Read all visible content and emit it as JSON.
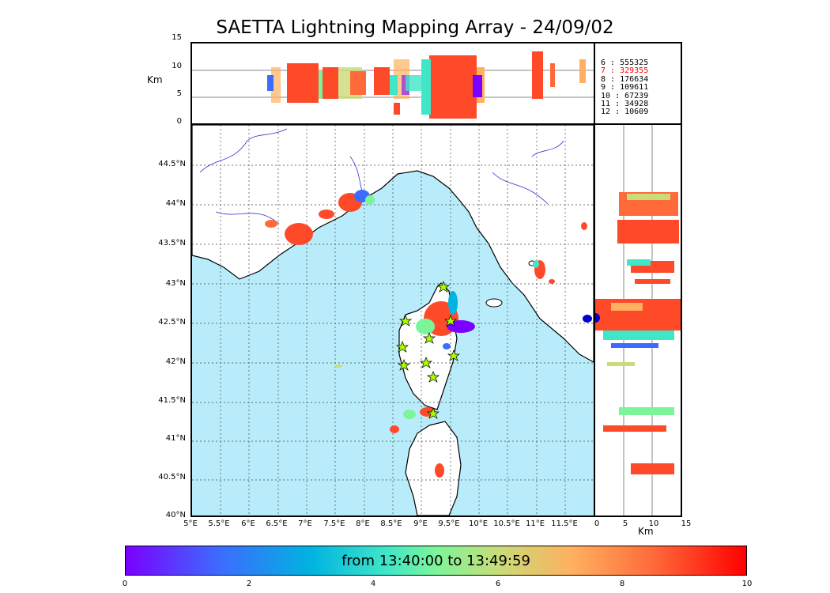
{
  "title": "SAETTA Lightning Mapping Array - 24/09/02",
  "altitude_panel": {
    "unit_label": "Km",
    "y_ticks": [
      "15",
      "10",
      "5",
      "0"
    ]
  },
  "stats": [
    {
      "label": "6",
      "value": "555325",
      "highlight": false
    },
    {
      "label": "7",
      "value": "329355",
      "highlight": true
    },
    {
      "label": "8",
      "value": "176634",
      "highlight": false
    },
    {
      "label": "9",
      "value": "109611",
      "highlight": false
    },
    {
      "label": "10",
      "value": "67239",
      "highlight": false
    },
    {
      "label": "11",
      "value": "34928",
      "highlight": false
    },
    {
      "label": "12",
      "value": "10609",
      "highlight": false
    }
  ],
  "map": {
    "lat_ticks": [
      "44.5°N",
      "44°N",
      "43.5°N",
      "43°N",
      "42.5°N",
      "42°N",
      "41.5°N",
      "41°N",
      "40.5°N",
      "40°N"
    ],
    "lon_ticks": [
      "5°E",
      "5.5°E",
      "6°E",
      "6.5°E",
      "7°E",
      "7.5°E",
      "8°E",
      "8.5°E",
      "9°E",
      "9.5°E",
      "10°E",
      "10.5°E",
      "11°E",
      "11.5°E"
    ],
    "sea_color": "#b8ecfa",
    "land_color": "#ffffff"
  },
  "side_panel": {
    "x_ticks": [
      "0",
      "5",
      "10",
      "15"
    ],
    "unit_label": "Km"
  },
  "colorbar": {
    "text": "from 13:40:00 to 13:49:59",
    "ticks": [
      "0",
      "2",
      "4",
      "6",
      "8",
      "10"
    ]
  },
  "colors": {
    "dominant_flash": "#ff4a2a",
    "palette": [
      "#7a00ff",
      "#3d6bff",
      "#00b4e0",
      "#40e6c8",
      "#7cf59a",
      "#c8dc78",
      "#ffb060",
      "#ff6a3a"
    ]
  }
}
